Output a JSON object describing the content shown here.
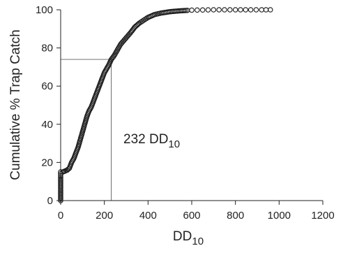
{
  "chart_data": {
    "type": "scatter",
    "title": "",
    "xlabel": "DD",
    "xlabel_sub": "10",
    "ylabel": "Cumulative % Trap Catch",
    "xlim": [
      0,
      1200
    ],
    "ylim": [
      0,
      100
    ],
    "xticks": [
      0,
      200,
      400,
      600,
      800,
      1000,
      1200
    ],
    "yticks": [
      0,
      20,
      40,
      60,
      80,
      100
    ],
    "grid": false,
    "marker": "open-circle",
    "annotation": {
      "text": "232 DD",
      "text_sub": "10",
      "x": 232,
      "y": 74
    },
    "curve_points": [
      [
        0,
        0
      ],
      [
        0,
        3
      ],
      [
        0,
        6
      ],
      [
        0,
        9
      ],
      [
        0,
        12
      ],
      [
        0,
        14
      ],
      [
        0,
        15
      ],
      [
        10,
        15
      ],
      [
        20,
        15.5
      ],
      [
        30,
        16
      ],
      [
        40,
        17
      ],
      [
        50,
        20
      ],
      [
        60,
        22
      ],
      [
        70,
        25
      ],
      [
        80,
        28
      ],
      [
        90,
        32
      ],
      [
        100,
        36
      ],
      [
        110,
        40
      ],
      [
        120,
        44
      ],
      [
        130,
        47
      ],
      [
        140,
        49
      ],
      [
        150,
        52
      ],
      [
        160,
        55
      ],
      [
        170,
        58
      ],
      [
        180,
        61
      ],
      [
        190,
        64
      ],
      [
        200,
        67
      ],
      [
        210,
        69
      ],
      [
        220,
        71
      ],
      [
        232,
        74
      ],
      [
        245,
        76
      ],
      [
        260,
        79
      ],
      [
        275,
        82
      ],
      [
        290,
        84
      ],
      [
        305,
        86
      ],
      [
        320,
        88
      ],
      [
        340,
        91
      ],
      [
        360,
        93
      ],
      [
        380,
        94.5
      ],
      [
        400,
        96
      ],
      [
        430,
        97.5
      ],
      [
        460,
        98.3
      ],
      [
        500,
        99
      ],
      [
        540,
        99.4
      ],
      [
        580,
        99.7
      ],
      [
        600,
        99.8
      ],
      [
        650,
        99.9
      ],
      [
        700,
        100
      ],
      [
        800,
        100
      ],
      [
        870,
        100
      ],
      [
        920,
        100
      ],
      [
        960,
        100
      ]
    ]
  }
}
